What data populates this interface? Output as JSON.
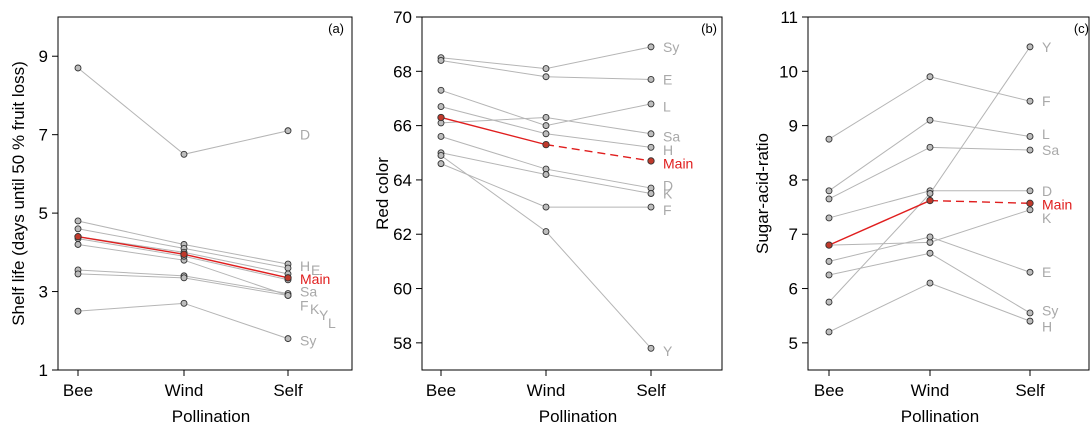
{
  "chart_data": [
    {
      "type": "line",
      "panel_tag": "(a)",
      "ylabel": "Shelf life (days until 50 % fruit loss)",
      "xlabel": "Pollination",
      "categories": [
        "Bee",
        "Wind",
        "Self"
      ],
      "ylim": [
        1,
        10
      ],
      "yticks": [
        1,
        3,
        5,
        7,
        9
      ],
      "series": [
        {
          "name": "D",
          "values": [
            8.7,
            6.5,
            7.1
          ]
        },
        {
          "name": "H",
          "values": [
            4.8,
            4.2,
            3.7
          ]
        },
        {
          "name": "E",
          "values": [
            4.6,
            4.1,
            3.6
          ]
        },
        {
          "name": "Sa",
          "values": [
            4.2,
            3.8,
            2.9
          ]
        },
        {
          "name": "F",
          "values": [
            3.55,
            3.4,
            2.95
          ]
        },
        {
          "name": "K",
          "values": [
            3.45,
            3.35,
            2.9
          ]
        },
        {
          "name": "Y",
          "values": [
            4.35,
            3.9,
            3.3
          ]
        },
        {
          "name": "L",
          "values": [
            4.4,
            4.0,
            3.45
          ]
        },
        {
          "name": "Sy",
          "values": [
            2.5,
            2.7,
            1.8
          ]
        }
      ],
      "highlight": {
        "name": "Main",
        "values": [
          4.4,
          3.95,
          3.35
        ],
        "dashed_last": false
      },
      "series_labels": [
        {
          "text": "D",
          "y": 7.0,
          "dx": 0
        },
        {
          "text": "H",
          "y": 3.65,
          "dx": 0
        },
        {
          "text": "E",
          "y": 3.55,
          "dx": 11
        },
        {
          "text": "Main",
          "y": 3.32,
          "dx": 0,
          "highlight": true
        },
        {
          "text": "Sa",
          "y": 3.0,
          "dx": 0
        },
        {
          "text": "F",
          "y": 2.65,
          "dx": 0
        },
        {
          "text": "K",
          "y": 2.55,
          "dx": 10
        },
        {
          "text": "Y",
          "y": 2.4,
          "dx": 19
        },
        {
          "text": "L",
          "y": 2.2,
          "dx": 28
        },
        {
          "text": "Sy",
          "y": 1.75,
          "dx": 0
        }
      ]
    },
    {
      "type": "line",
      "panel_tag": "(b)",
      "ylabel": "Red color",
      "xlabel": "Pollination",
      "categories": [
        "Bee",
        "Wind",
        "Self"
      ],
      "ylim": [
        57,
        70
      ],
      "yticks": [
        58,
        60,
        62,
        64,
        66,
        68,
        70
      ],
      "series": [
        {
          "name": "Sy",
          "values": [
            68.5,
            68.1,
            68.9
          ]
        },
        {
          "name": "E",
          "values": [
            68.4,
            67.8,
            67.7
          ]
        },
        {
          "name": "L",
          "values": [
            67.3,
            66.0,
            66.8
          ]
        },
        {
          "name": "Sa",
          "values": [
            66.1,
            66.3,
            65.7
          ]
        },
        {
          "name": "H",
          "values": [
            66.7,
            65.7,
            65.2
          ]
        },
        {
          "name": "D",
          "values": [
            65.6,
            64.4,
            63.7
          ]
        },
        {
          "name": "K",
          "values": [
            65.0,
            64.2,
            63.5
          ]
        },
        {
          "name": "F",
          "values": [
            64.6,
            63.0,
            63.0
          ]
        },
        {
          "name": "Y",
          "values": [
            64.9,
            62.1,
            57.8
          ]
        }
      ],
      "highlight": {
        "name": "Main",
        "values": [
          66.3,
          65.3,
          64.7
        ],
        "dashed_last": true
      },
      "series_labels": [
        {
          "text": "Sy",
          "y": 68.9,
          "dx": 0
        },
        {
          "text": "E",
          "y": 67.7,
          "dx": 0
        },
        {
          "text": "L",
          "y": 66.7,
          "dx": 0
        },
        {
          "text": "Sa",
          "y": 65.6,
          "dx": 0
        },
        {
          "text": "H",
          "y": 65.1,
          "dx": 0
        },
        {
          "text": "Main",
          "y": 64.6,
          "dx": 0,
          "highlight": true
        },
        {
          "text": "D",
          "y": 63.8,
          "dx": 0
        },
        {
          "text": "K",
          "y": 63.5,
          "dx": 0
        },
        {
          "text": "F",
          "y": 62.9,
          "dx": 0
        },
        {
          "text": "Y",
          "y": 57.7,
          "dx": 0
        }
      ]
    },
    {
      "type": "line",
      "panel_tag": "(c)",
      "ylabel": "Sugar-acid-ratio",
      "xlabel": "Pollination",
      "categories": [
        "Bee",
        "Wind",
        "Self"
      ],
      "ylim": [
        4.5,
        11
      ],
      "yticks": [
        5,
        6,
        7,
        8,
        9,
        10,
        11
      ],
      "series": [
        {
          "name": "F",
          "values": [
            8.75,
            9.9,
            9.45
          ]
        },
        {
          "name": "L",
          "values": [
            7.8,
            9.1,
            8.8
          ]
        },
        {
          "name": "Sa",
          "values": [
            7.65,
            8.6,
            8.55
          ]
        },
        {
          "name": "D",
          "values": [
            7.3,
            7.8,
            7.8
          ]
        },
        {
          "name": "K",
          "values": [
            6.8,
            6.85,
            7.45
          ]
        },
        {
          "name": "Y",
          "values": [
            5.75,
            7.75,
            10.45
          ]
        },
        {
          "name": "E",
          "values": [
            6.5,
            6.95,
            6.3
          ]
        },
        {
          "name": "Sy",
          "values": [
            6.25,
            6.65,
            5.55
          ]
        },
        {
          "name": "H",
          "values": [
            5.2,
            6.1,
            5.4
          ]
        }
      ],
      "highlight": {
        "name": "Main",
        "values": [
          6.8,
          7.62,
          7.57
        ],
        "dashed_last": true
      },
      "series_labels": [
        {
          "text": "Y",
          "y": 10.45,
          "dx": 0
        },
        {
          "text": "F",
          "y": 9.45,
          "dx": 0
        },
        {
          "text": "L",
          "y": 8.85,
          "dx": 0
        },
        {
          "text": "Sa",
          "y": 8.55,
          "dx": 0
        },
        {
          "text": "D",
          "y": 7.8,
          "dx": 0
        },
        {
          "text": "Main",
          "y": 7.55,
          "dx": 0,
          "highlight": true
        },
        {
          "text": "K",
          "y": 7.3,
          "dx": 0
        },
        {
          "text": "E",
          "y": 6.3,
          "dx": 0
        },
        {
          "text": "Sy",
          "y": 5.6,
          "dx": 0
        },
        {
          "text": "H",
          "y": 5.3,
          "dx": 0
        }
      ]
    }
  ],
  "colors": {
    "series": "#b5b5b5",
    "label": "#a9a9a9",
    "highlight": "#e01e1e",
    "point_fill": "#bdbdbd"
  }
}
